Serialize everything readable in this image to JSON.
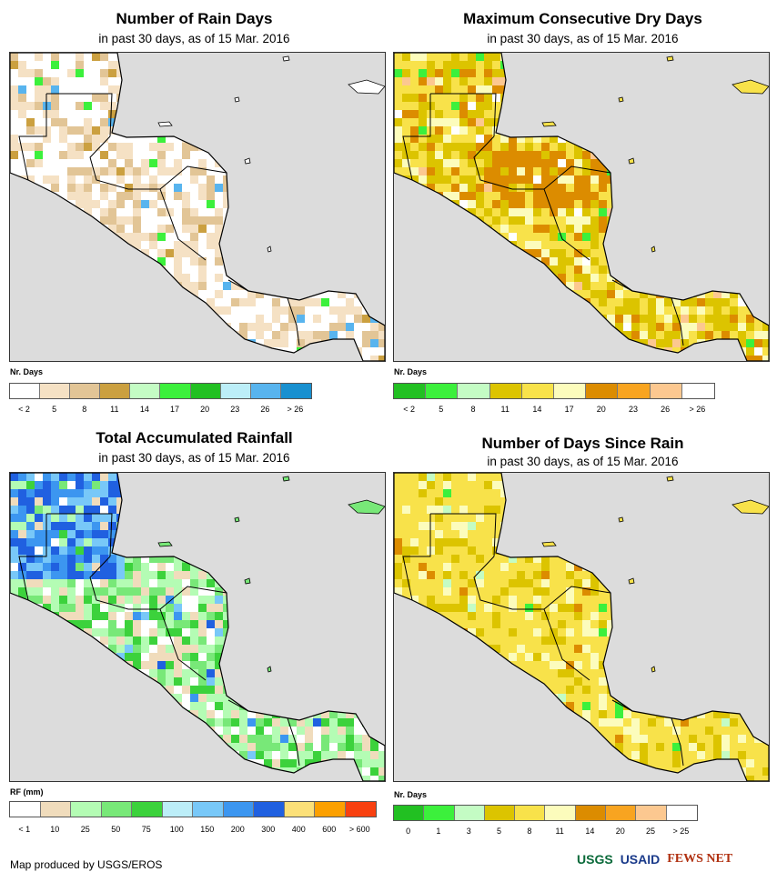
{
  "panels": [
    {
      "id": "rain-days",
      "title": "Number of Rain Days",
      "subtitle": "in past 30 days, as of 15 Mar. 2016",
      "legend_title": "Nr. Days",
      "legend_labels": [
        "< 2",
        "5",
        "8",
        "11",
        "14",
        "17",
        "20",
        "23",
        "26",
        "> 26"
      ],
      "legend_colors": [
        "#ffffff",
        "#f5e1c4",
        "#e2c596",
        "#cba040",
        "#c4fcc4",
        "#3cf03c",
        "#22c022",
        "#bceef8",
        "#58b4ee",
        "#1890d0"
      ],
      "land_palette": [
        "#ffffff",
        "#ffffff",
        "#ffffff",
        "#f5e1c4",
        "#f5e1c4",
        "#e2c596"
      ],
      "accent_palette": [
        "#3cf03c",
        "#58b4ee",
        "#cba040"
      ]
    },
    {
      "id": "max-dry-days",
      "title": "Maximum Consecutive Dry Days",
      "subtitle": "in past 30 days, as of 15 Mar. 2016",
      "legend_title": "Nr. Days",
      "legend_labels": [
        "< 2",
        "5",
        "8",
        "11",
        "14",
        "17",
        "20",
        "23",
        "26",
        "> 26"
      ],
      "legend_colors": [
        "#22c022",
        "#3cf03c",
        "#c4fcc4",
        "#dcc400",
        "#f8e24a",
        "#fcfcbc",
        "#dc8c00",
        "#f8a420",
        "#fcc890",
        "#ffffff"
      ],
      "land_palette": [
        "#dcc400",
        "#f8e24a",
        "#f8e24a",
        "#fcfcbc",
        "#dc8c00",
        "#dcc400"
      ],
      "accent_palette": [
        "#3cf03c",
        "#fcc890",
        "#ffffff"
      ]
    },
    {
      "id": "total-rainfall",
      "title": "Total Accumulated Rainfall",
      "subtitle": "in past 30 days, as of 15 Mar. 2016",
      "legend_title": "RF (mm)",
      "legend_labels": [
        "< 1",
        "10",
        "25",
        "50",
        "75",
        "100",
        "150",
        "200",
        "300",
        "400",
        "600",
        "> 600"
      ],
      "legend_colors": [
        "#ffffff",
        "#f0dcbc",
        "#b4fcb4",
        "#78e878",
        "#3cd23c",
        "#bceef8",
        "#78c8f8",
        "#3c96f0",
        "#2060e0",
        "#fce078",
        "#fca000",
        "#f84010"
      ],
      "land_palette": [
        "#b4fcb4",
        "#78e878",
        "#3cd23c",
        "#ffffff",
        "#f0dcbc",
        "#b4fcb4"
      ],
      "accent_palette": [
        "#78c8f8",
        "#3c96f0",
        "#2060e0"
      ]
    },
    {
      "id": "days-since-rain",
      "title": "Number of Days Since Rain",
      "subtitle": "in past 30 days, as of 15 Mar. 2016",
      "legend_title": "Nr. Days",
      "legend_labels": [
        "0",
        "1",
        "3",
        "5",
        "8",
        "11",
        "14",
        "20",
        "25",
        "> 25"
      ],
      "legend_colors": [
        "#22c022",
        "#3cf03c",
        "#c4fcc4",
        "#dcc400",
        "#f8e24a",
        "#fcfcbc",
        "#dc8c00",
        "#f8a420",
        "#fcc890",
        "#ffffff"
      ],
      "land_palette": [
        "#f8e24a",
        "#f8e24a",
        "#fcfcbc",
        "#f8e24a",
        "#dcc400",
        "#f8e24a"
      ],
      "accent_palette": [
        "#3cf03c",
        "#dc8c00",
        "#c4fcc4"
      ]
    }
  ],
  "footer": {
    "credit": "Map produced by USGS/EROS",
    "logos": [
      "USGS",
      "USAID",
      "FEWS NET"
    ]
  },
  "colors": {
    "ocean": "#dcdcdc",
    "border": "#000000"
  }
}
